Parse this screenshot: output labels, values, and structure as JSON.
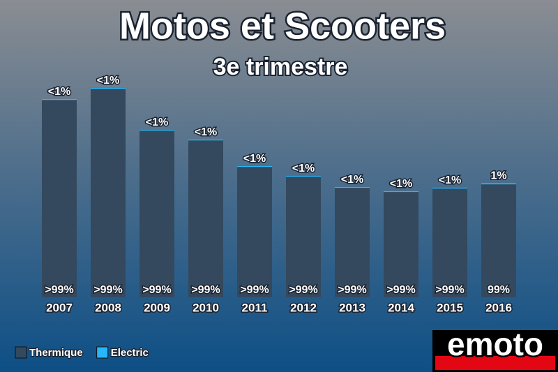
{
  "chart_data": {
    "type": "stacked-bar",
    "title": "Motos et Scooters",
    "subtitle": "3e trimestre",
    "categories": [
      "2007",
      "2008",
      "2009",
      "2010",
      "2011",
      "2012",
      "2013",
      "2014",
      "2015",
      "2016"
    ],
    "series": [
      {
        "name": "Thermique",
        "color": "#34495e",
        "values": [
          283,
          299,
          239,
          225,
          187,
          173,
          157,
          151,
          156,
          162
        ],
        "value_labels": [
          ">99%",
          ">99%",
          ">99%",
          ">99%",
          ">99%",
          ">99%",
          ">99%",
          ">99%",
          ">99%",
          "99%"
        ]
      },
      {
        "name": "Electric",
        "color": "#29b6f6",
        "values": [
          1.2,
          1.2,
          1.2,
          1.2,
          1.2,
          1.2,
          1.2,
          1.2,
          1.2,
          1.6
        ],
        "value_labels": [
          "<1%",
          "<1%",
          "<1%",
          "<1%",
          "<1%",
          "<1%",
          "<1%",
          "<1%",
          "<1%",
          "1%"
        ]
      }
    ]
  },
  "logo": "emoto"
}
